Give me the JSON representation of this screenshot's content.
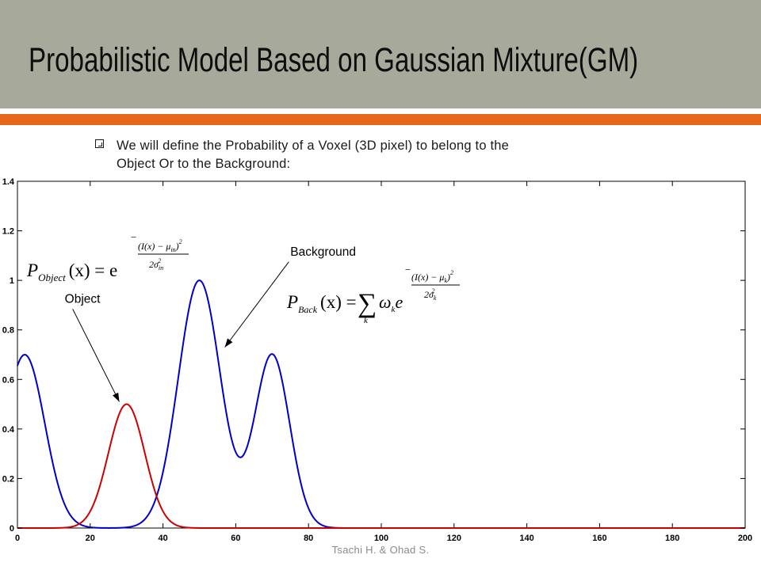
{
  "slide": {
    "title": "Probabilistic Model Based on Gaussian Mixture(GM)",
    "bullet_line1": "We will define the Probability of a Voxel (3D pixel) to belong to the",
    "bullet_line2": "Object Or to the Background:",
    "footer": "Tsachi H. & Ohad S."
  },
  "colors": {
    "title_bar": "#a7aa9b",
    "accent": "#e6671a",
    "background_curve": "#0000cc",
    "object_curve": "#cc0000"
  },
  "chart_data": {
    "type": "line",
    "title": "",
    "xlabel": "",
    "ylabel": "",
    "xlim": [
      0,
      200
    ],
    "ylim": [
      0,
      1.4
    ],
    "x_ticks": [
      0,
      20,
      40,
      60,
      80,
      100,
      120,
      140,
      160,
      180,
      200
    ],
    "y_ticks": [
      0,
      0.2,
      0.4,
      0.6,
      0.8,
      1,
      1.2,
      1.4
    ],
    "y_tick_labels": [
      "0",
      "0.2",
      "0.4",
      "0.6",
      "0.8",
      "1",
      "1.2",
      "1.4"
    ],
    "grid": false,
    "series": [
      {
        "name": "Background",
        "color": "#0000cc",
        "components": [
          {
            "weight": 0.7,
            "mean": 2,
            "sigma": 5.5
          },
          {
            "weight": 1.0,
            "mean": 50,
            "sigma": 5.8
          },
          {
            "weight": 0.7,
            "mean": 70,
            "sigma": 4.8
          }
        ],
        "x": [
          0,
          2,
          5,
          10,
          15,
          20,
          25,
          30,
          35,
          40,
          45,
          50,
          55,
          60,
          62,
          65,
          70,
          75,
          80,
          85,
          90,
          100,
          110,
          120,
          140,
          160,
          180,
          200
        ],
        "y": [
          0.66,
          0.7,
          0.6,
          0.27,
          0.06,
          0.005,
          0.0,
          0.01,
          0.08,
          0.31,
          0.69,
          1.0,
          0.7,
          0.44,
          0.43,
          0.49,
          0.72,
          0.37,
          0.1,
          0.01,
          0.0,
          0.0,
          0.0,
          0.0,
          0.0,
          0.0,
          0.0,
          0.0
        ]
      },
      {
        "name": "Object",
        "color": "#cc0000",
        "components": [
          {
            "weight": 0.5,
            "mean": 30,
            "sigma": 5.0
          }
        ],
        "x": [
          0,
          10,
          15,
          20,
          25,
          30,
          35,
          40,
          45,
          50,
          60,
          80,
          100,
          120,
          140,
          160,
          180,
          200
        ],
        "y": [
          0.0,
          0.0,
          0.005,
          0.07,
          0.3,
          0.5,
          0.3,
          0.07,
          0.005,
          0.0,
          0.0,
          0.0,
          0.0,
          0.0,
          0.0,
          0.0,
          0.0,
          0.0
        ]
      }
    ],
    "annotations": [
      {
        "text": "Background",
        "x": 75,
        "y": 1.1,
        "arrow_to": [
          57,
          0.73
        ]
      },
      {
        "text": "Object",
        "x": 13,
        "y": 0.91,
        "arrow_to": [
          28,
          0.51
        ]
      }
    ],
    "formulas": {
      "object_lhs": "P",
      "object_lhs_sub": "Object",
      "object_arg": "(x) = e",
      "object_exp_num": "(I(x) − μ",
      "object_exp_num_sub": "in",
      "object_exp_num_tail": ")",
      "object_exp_sq": "2",
      "object_exp_den": "2σ",
      "object_exp_den_sub": "in",
      "object_exp_den_sq": "2",
      "back_lhs": "P",
      "back_lhs_sub": "Back",
      "back_arg": "(x) =",
      "sum_symbol": "∑",
      "sum_index": "k",
      "back_weight": "ω",
      "back_weight_sub": "k",
      "back_e": "e",
      "back_exp_num": "(I(x) − μ",
      "back_exp_num_sub": "k",
      "back_exp_num_tail": ")",
      "back_exp_sq": "2",
      "back_exp_den": "2σ",
      "back_exp_den_sub": "k",
      "back_exp_den_sq": "2",
      "minus": "−"
    }
  }
}
